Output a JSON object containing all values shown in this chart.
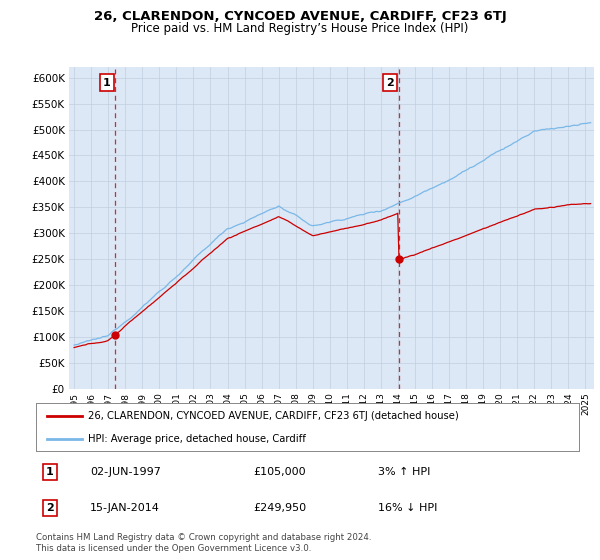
{
  "title": "26, CLARENDON, CYNCOED AVENUE, CARDIFF, CF23 6TJ",
  "subtitle": "Price paid vs. HM Land Registry’s House Price Index (HPI)",
  "legend_line1": "26, CLARENDON, CYNCOED AVENUE, CARDIFF, CF23 6TJ (detached house)",
  "legend_line2": "HPI: Average price, detached house, Cardiff",
  "annotation1_label": "1",
  "annotation1_date": "02-JUN-1997",
  "annotation1_price": "£105,000",
  "annotation1_hpi": "3% ↑ HPI",
  "annotation2_label": "2",
  "annotation2_date": "15-JAN-2014",
  "annotation2_price": "£249,950",
  "annotation2_hpi": "16% ↓ HPI",
  "footer": "Contains HM Land Registry data © Crown copyright and database right 2024.\nThis data is licensed under the Open Government Licence v3.0.",
  "sale1_year": 1997.42,
  "sale1_price": 105000,
  "sale2_year": 2014.04,
  "sale2_price": 249950,
  "hpi_color": "#7ab8e8",
  "price_color": "#cc0000",
  "marker_color": "#cc0000",
  "background_color": "#dce8f5",
  "fig_background": "#ffffff",
  "grid_color": "#c0cfe0",
  "ylim": [
    0,
    620000
  ],
  "yticks": [
    0,
    50000,
    100000,
    150000,
    200000,
    250000,
    300000,
    350000,
    400000,
    450000,
    500000,
    550000,
    600000
  ],
  "xlim_start": 1994.7,
  "xlim_end": 2025.5
}
